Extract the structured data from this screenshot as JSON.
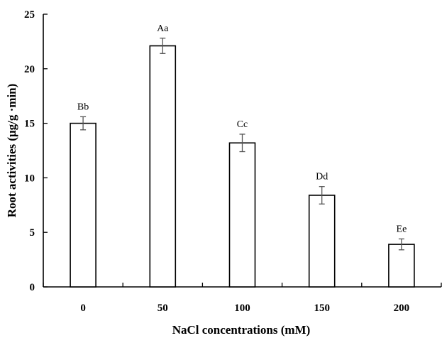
{
  "chart_data": {
    "type": "bar",
    "title": "",
    "xlabel": "NaCl concentrations (mM)",
    "ylabel": "Root activities  (μg/g ·min)",
    "categories": [
      "0",
      "50",
      "100",
      "150",
      "200"
    ],
    "values": [
      15.0,
      22.1,
      13.2,
      8.4,
      3.9
    ],
    "error": [
      0.6,
      0.7,
      0.8,
      0.8,
      0.5
    ],
    "significance_labels": [
      "Bb",
      "Aa",
      "Cc",
      "Dd",
      "Ee"
    ],
    "ylim": [
      0,
      25
    ],
    "yticks": [
      "0",
      "5",
      "10",
      "15",
      "20",
      "25"
    ],
    "ytick_values": [
      0,
      5,
      10,
      15,
      20,
      25
    ],
    "grid": false,
    "legend": "none",
    "colors": {
      "bar_fill": "#ffffff",
      "bar_stroke": "#000000",
      "error_bar": "#555555"
    }
  }
}
